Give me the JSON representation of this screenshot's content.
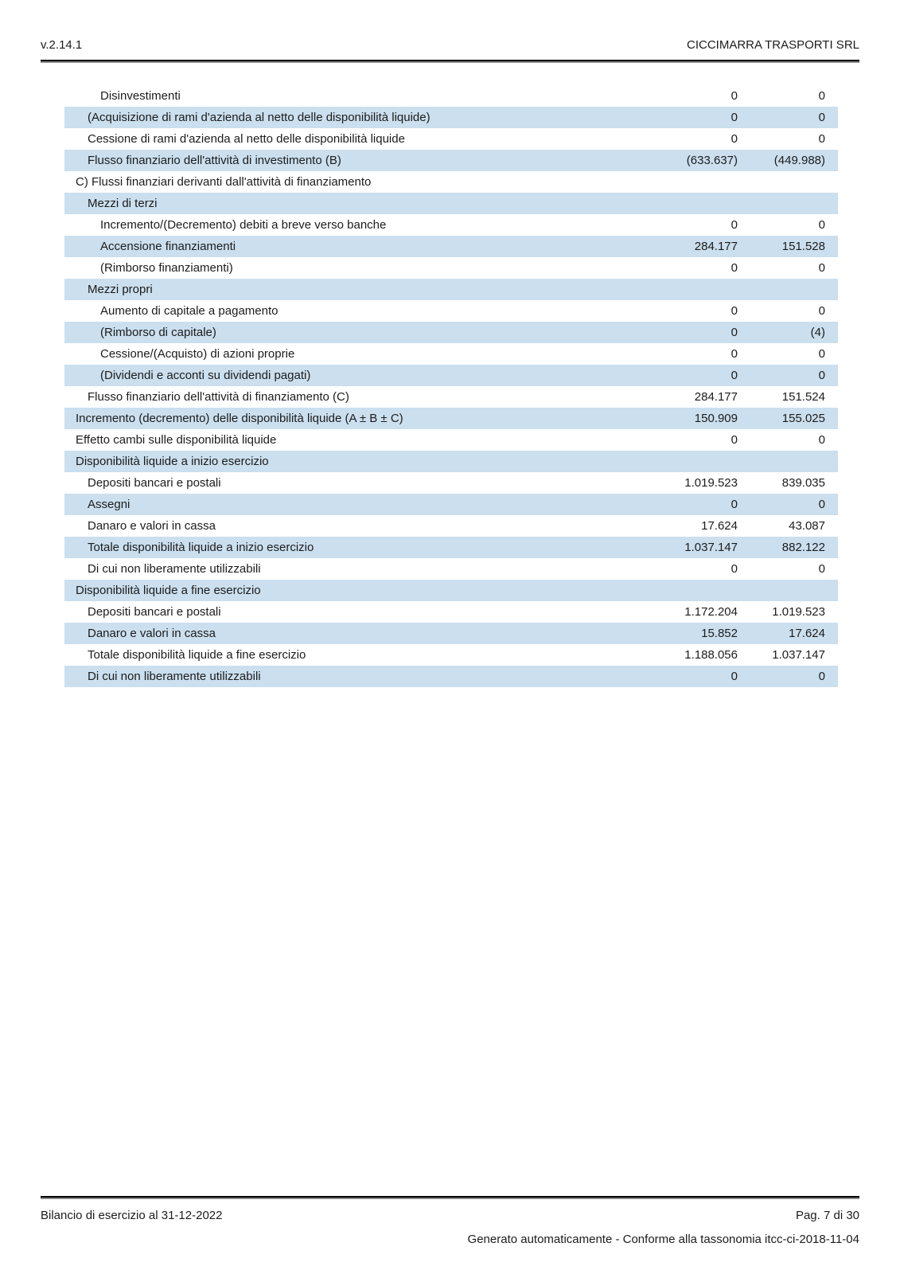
{
  "header": {
    "version": "v.2.14.1",
    "company": "CICCIMARRA TRASPORTI SRL"
  },
  "table": {
    "rows": [
      {
        "label": "Disinvestimenti",
        "level": 2,
        "values": [
          "0",
          "0"
        ]
      },
      {
        "label": "(Acquisizione di rami d'azienda al netto delle disponibilità liquide)",
        "level": 1,
        "values": [
          "0",
          "0"
        ]
      },
      {
        "label": "Cessione di rami d'azienda al netto delle disponibilità liquide",
        "level": 1,
        "values": [
          "0",
          "0"
        ]
      },
      {
        "label": "Flusso finanziario dell'attività di investimento (B)",
        "level": 1,
        "values": [
          "(633.637)",
          "(449.988)"
        ]
      },
      {
        "label": "C) Flussi finanziari derivanti dall'attività di finanziamento",
        "level": 0,
        "values": [
          "",
          ""
        ]
      },
      {
        "label": "Mezzi di terzi",
        "level": 1,
        "values": [
          "",
          ""
        ]
      },
      {
        "label": "Incremento/(Decremento) debiti a breve verso banche",
        "level": 2,
        "values": [
          "0",
          "0"
        ]
      },
      {
        "label": "Accensione finanziamenti",
        "level": 2,
        "values": [
          "284.177",
          "151.528"
        ]
      },
      {
        "label": "(Rimborso finanziamenti)",
        "level": 2,
        "values": [
          "0",
          "0"
        ]
      },
      {
        "label": "Mezzi propri",
        "level": 1,
        "values": [
          "",
          ""
        ]
      },
      {
        "label": "Aumento di capitale a pagamento",
        "level": 2,
        "values": [
          "0",
          "0"
        ]
      },
      {
        "label": "(Rimborso di capitale)",
        "level": 2,
        "values": [
          "0",
          "(4)"
        ]
      },
      {
        "label": "Cessione/(Acquisto) di azioni proprie",
        "level": 2,
        "values": [
          "0",
          "0"
        ]
      },
      {
        "label": "(Dividendi e acconti su dividendi pagati)",
        "level": 2,
        "values": [
          "0",
          "0"
        ]
      },
      {
        "label": "Flusso finanziario dell'attività di finanziamento (C)",
        "level": 1,
        "values": [
          "284.177",
          "151.524"
        ]
      },
      {
        "label": "Incremento (decremento) delle disponibilità liquide (A ± B ± C)",
        "level": 0,
        "values": [
          "150.909",
          "155.025"
        ]
      },
      {
        "label": "Effetto cambi sulle disponibilità liquide",
        "level": 0,
        "values": [
          "0",
          "0"
        ]
      },
      {
        "label": "Disponibilità liquide a inizio esercizio",
        "level": 0,
        "values": [
          "",
          ""
        ]
      },
      {
        "label": "Depositi bancari e postali",
        "level": 1,
        "values": [
          "1.019.523",
          "839.035"
        ]
      },
      {
        "label": "Assegni",
        "level": 1,
        "values": [
          "0",
          "0"
        ]
      },
      {
        "label": "Danaro e valori in cassa",
        "level": 1,
        "values": [
          "17.624",
          "43.087"
        ]
      },
      {
        "label": "Totale disponibilità liquide a inizio esercizio",
        "level": 1,
        "values": [
          "1.037.147",
          "882.122"
        ]
      },
      {
        "label": "Di cui non liberamente utilizzabili",
        "level": 1,
        "values": [
          "0",
          "0"
        ]
      },
      {
        "label": "Disponibilità liquide a fine esercizio",
        "level": 0,
        "values": [
          "",
          ""
        ]
      },
      {
        "label": "Depositi bancari e postali",
        "level": 1,
        "values": [
          "1.172.204",
          "1.019.523"
        ]
      },
      {
        "label": "Danaro e valori in cassa",
        "level": 1,
        "values": [
          "15.852",
          "17.624"
        ]
      },
      {
        "label": "Totale disponibilità liquide a fine esercizio",
        "level": 1,
        "values": [
          "1.188.056",
          "1.037.147"
        ]
      },
      {
        "label": "Di cui non liberamente utilizzabili",
        "level": 1,
        "values": [
          "0",
          "0"
        ]
      }
    ]
  },
  "footer": {
    "left": "Bilancio di esercizio al 31-12-2022",
    "page": "Pag. 7 di 30",
    "generated": "Generato automaticamente - Conforme alla tassonomia itcc-ci-2018-11-04"
  },
  "colors": {
    "row_highlight": "#cbdfee",
    "rule": "#000000",
    "text": "#1c1c1c"
  }
}
